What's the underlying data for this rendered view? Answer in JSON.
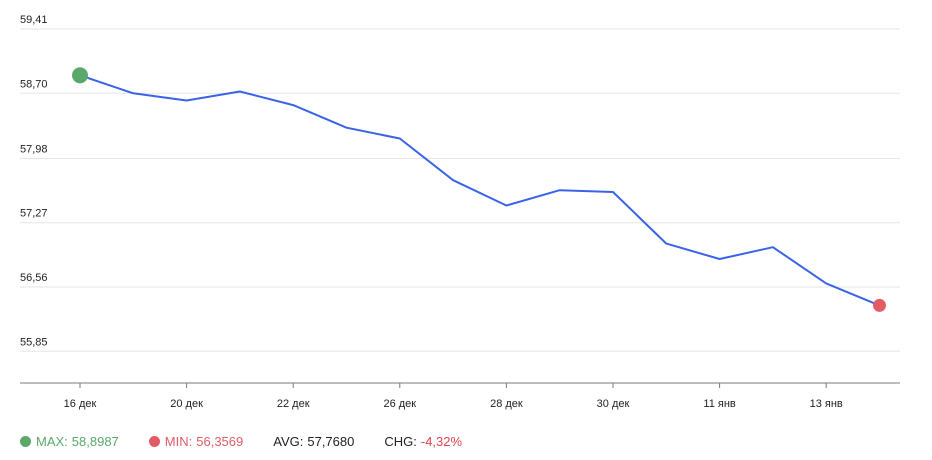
{
  "chart_data": {
    "type": "line",
    "title": "",
    "xlabel": "",
    "ylabel": "",
    "ylim": [
      55.5,
      59.41
    ],
    "yticks": [
      "59,41",
      "58,70",
      "57,98",
      "57,27",
      "56,56",
      "55,85"
    ],
    "ytick_values": [
      59.41,
      58.7,
      57.98,
      57.27,
      56.56,
      55.85
    ],
    "xticks": [
      {
        "label": "16 дек",
        "index": 0
      },
      {
        "label": "20 дек",
        "index": 2
      },
      {
        "label": "22 дек",
        "index": 4
      },
      {
        "label": "26 дек",
        "index": 6
      },
      {
        "label": "28 дек",
        "index": 8
      },
      {
        "label": "30 дек",
        "index": 10
      },
      {
        "label": "11 янв",
        "index": 12
      },
      {
        "label": "13 янв",
        "index": 14
      }
    ],
    "grid": true,
    "series": [
      {
        "color": "#3a64e8",
        "values": [
          58.8987,
          58.7,
          58.62,
          58.72,
          58.57,
          58.32,
          58.2,
          57.74,
          57.46,
          57.63,
          57.61,
          57.04,
          56.87,
          57.0,
          56.6,
          56.3569
        ]
      }
    ],
    "markers": [
      {
        "index": 0,
        "color": "#5aa96a"
      },
      {
        "index": 15,
        "color": "#e25c66"
      }
    ]
  },
  "stats": {
    "max_label": "MAX:",
    "max_value": "58,8987",
    "min_label": "MIN:",
    "min_value": "56,3569",
    "avg_label": "AVG:",
    "avg_value": "57,7680",
    "chg_label": "CHG:",
    "chg_value": "-4,32%"
  },
  "colors": {
    "max": "#5aa96a",
    "min": "#e25c66",
    "chg": "#e0454f",
    "line": "#3a64e8",
    "grid": "#e6e6e6",
    "axis": "#7a7a7a"
  }
}
